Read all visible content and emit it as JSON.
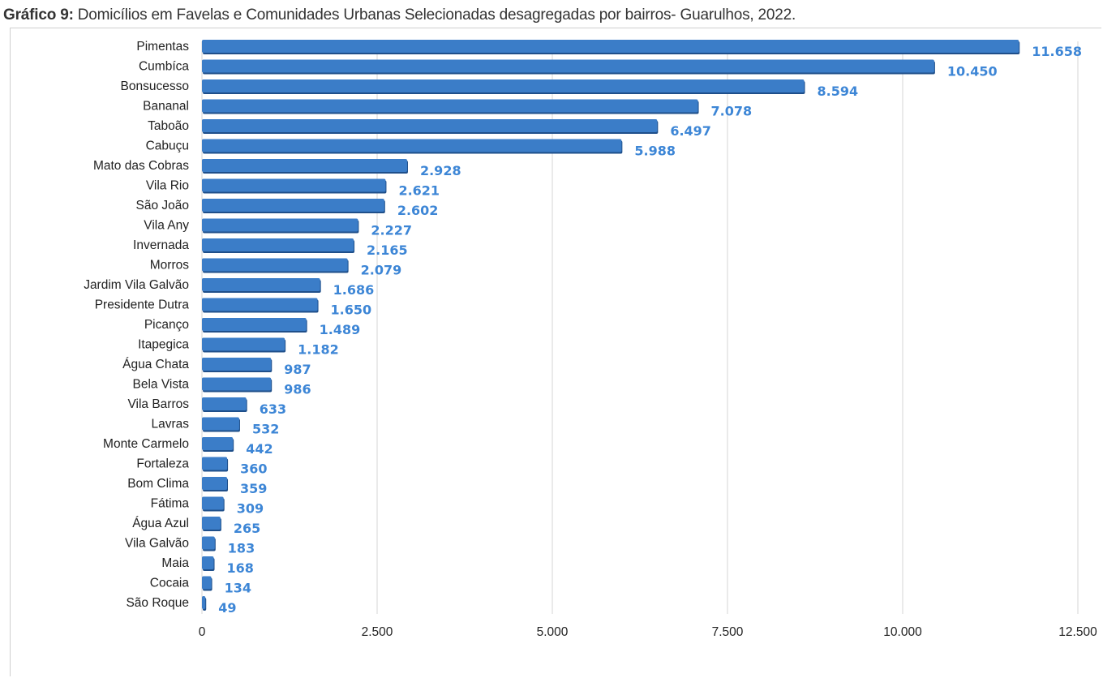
{
  "caption": {
    "label": "Gráfico 9:",
    "text": " Domicílios em Favelas e Comunidades Urbanas Selecionadas desagregadas por bairros- Guarulhos, 2022."
  },
  "colors": {
    "bar": "#3b7dc8",
    "bar_shadow": "#1f4f8a",
    "value_label": "#3d86d6",
    "grid": "#d4d4d4"
  },
  "chart_data": {
    "type": "bar",
    "orientation": "horizontal",
    "title": "",
    "xlabel": "",
    "ylabel": "",
    "xlim": [
      0,
      12500
    ],
    "grid": true,
    "legend": "none",
    "categories": [
      "Pimentas",
      "Cumbíca",
      "Bonsucesso",
      "Bananal",
      "Taboão",
      "Cabuçu",
      "Mato das Cobras",
      "Vila Rio",
      "São João",
      "Vila Any",
      "Invernada",
      "Morros",
      "Jardim Vila Galvão",
      "Presidente Dutra",
      "Picanço",
      "Itapegica",
      "Água Chata",
      "Bela Vista",
      "Vila Barros",
      "Lavras",
      "Monte Carmelo",
      "Fortaleza",
      "Bom Clima",
      "Fátima",
      "Água Azul",
      "Vila Galvão",
      "Maia",
      "Cocaia",
      "São Roque"
    ],
    "values": [
      11658,
      10450,
      8594,
      7078,
      6497,
      5988,
      2928,
      2621,
      2602,
      2227,
      2165,
      2079,
      1686,
      1650,
      1489,
      1182,
      987,
      986,
      633,
      532,
      442,
      360,
      359,
      309,
      265,
      183,
      168,
      134,
      49
    ],
    "value_labels": [
      "11.658",
      "10.450",
      "8.594",
      "7.078",
      "6.497",
      "5.988",
      "2.928",
      "2.621",
      "2.602",
      "2.227",
      "2.165",
      "2.079",
      "1.686",
      "1.650",
      "1.489",
      "1.182",
      "987",
      "986",
      "633",
      "532",
      "442",
      "360",
      "359",
      "309",
      "265",
      "183",
      "168",
      "134",
      "49"
    ],
    "ticks": [
      0,
      2500,
      5000,
      7500,
      10000,
      12500
    ],
    "tick_labels": [
      "0",
      "2.500",
      "5.000",
      "7.500",
      "10.000",
      "12.500"
    ]
  }
}
